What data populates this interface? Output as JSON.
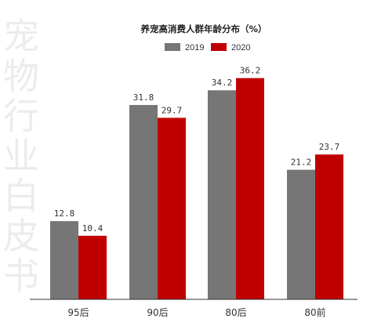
{
  "watermark": {
    "text": "宠物行业白皮书"
  },
  "chart_data": {
    "type": "bar",
    "title": "养宠高消费人群年龄分布（%）",
    "categories": [
      "95后",
      "90后",
      "80后",
      "80前"
    ],
    "series": [
      {
        "name": "2019",
        "color": "#767676",
        "values": [
          12.8,
          31.8,
          34.2,
          21.2
        ],
        "labels": [
          "12.8",
          "31.8",
          "34.2",
          "21.2"
        ]
      },
      {
        "name": "2020",
        "color": "#c00000",
        "values": [
          10.4,
          29.7,
          36.2,
          23.7
        ],
        "labels": [
          "10.4",
          "29.7",
          "36.2",
          "23.7"
        ]
      }
    ],
    "ylim": [
      0,
      40
    ],
    "grid": false,
    "legend_position": "top-center"
  }
}
